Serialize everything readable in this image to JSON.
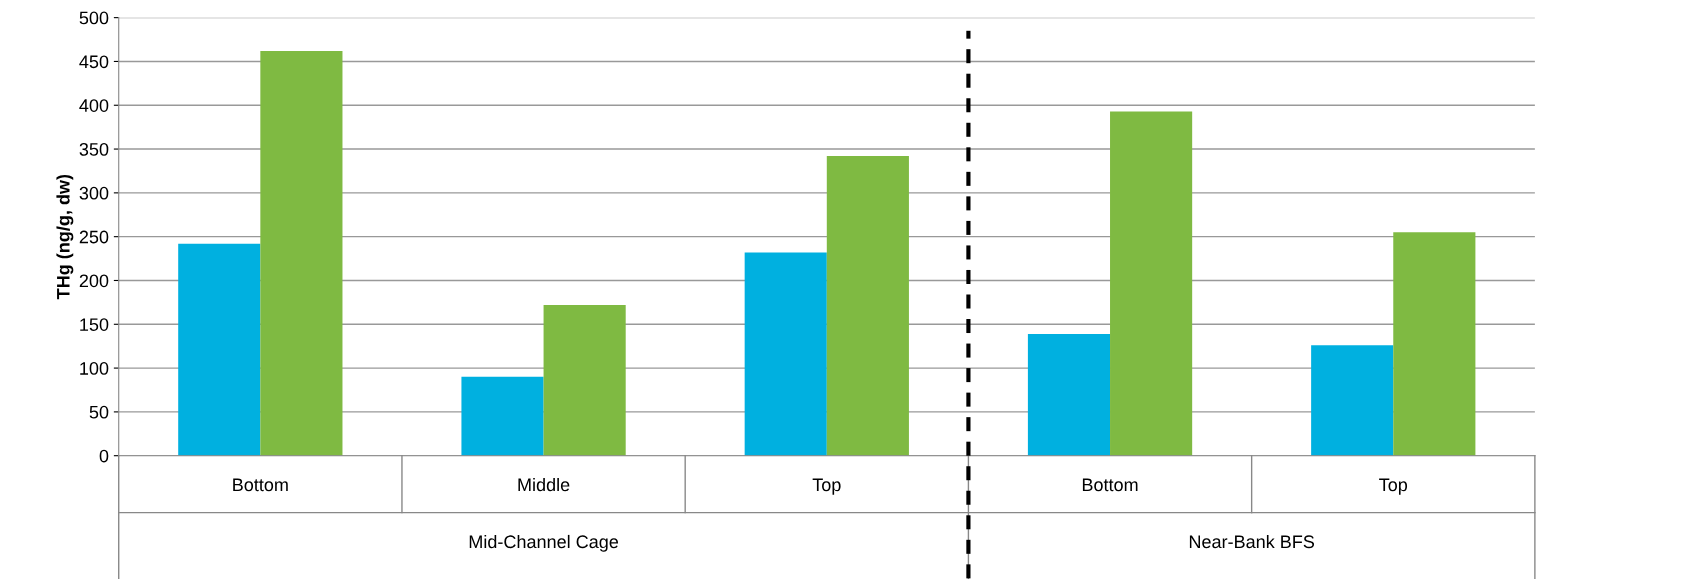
{
  "chart_data": {
    "type": "bar",
    "ylabel": "THg (ng/g, dw)",
    "categories": [
      "Bottom",
      "Middle",
      "Top",
      "Bottom",
      "Top"
    ],
    "series": [
      {
        "color": "#00b0e0",
        "values": [
          242,
          90,
          232,
          139,
          126
        ]
      },
      {
        "color": "#7fba42",
        "values": [
          462,
          172,
          342,
          393,
          255
        ]
      }
    ],
    "ylim": [
      0,
      500
    ],
    "yticks": [
      0,
      50,
      100,
      150,
      200,
      250,
      300,
      350,
      400,
      450,
      500
    ],
    "grid": "y",
    "annotations": [
      "Mid-Channel Cage",
      "Near-Bank BFS"
    ]
  }
}
